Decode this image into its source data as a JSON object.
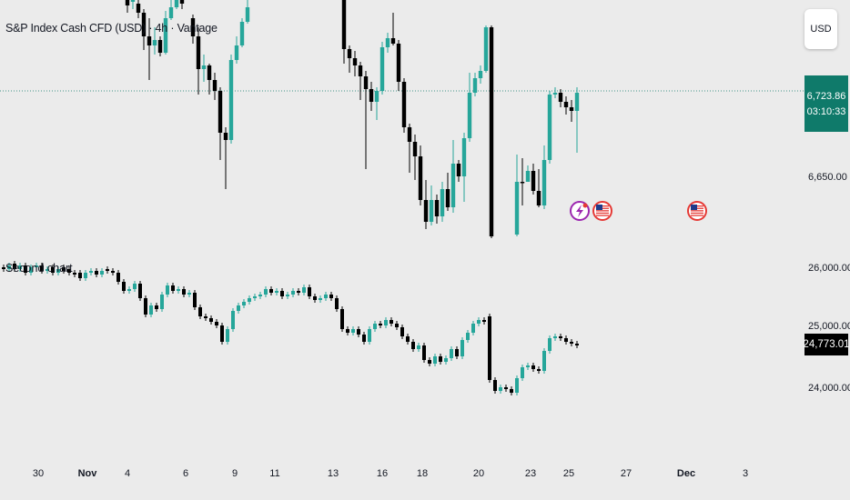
{
  "header": {
    "title": "S&P Index Cash CFD (USD) · 4h · Vantage"
  },
  "currency_button": {
    "label": "USD"
  },
  "current_price": {
    "value": "6,723.86",
    "countdown": "03:10:33"
  },
  "second_chart": {
    "label": "Second chart",
    "current_value": "24,773.01"
  },
  "colors": {
    "up": "#26a69a",
    "down": "#000000",
    "price_line": "#0f7a6a",
    "background": "#ebebeb"
  },
  "event_icons": [
    "lightning-icon",
    "us-flag-icon",
    "us-flag-icon"
  ],
  "chart_data": [
    {
      "type": "candlestick",
      "title": "S&P Index Cash CFD (USD) · 4h · Vantage",
      "y_ticks": [
        "6,723.86",
        "6,650.00"
      ],
      "last_value": 6723.86,
      "x_ticks": [
        "30",
        "Nov",
        "4",
        "6",
        "9",
        "11",
        "13",
        "16",
        "18",
        "20",
        "23",
        "25",
        "27",
        "Dec",
        "3"
      ]
    },
    {
      "type": "candlestick",
      "title": "Second chart",
      "y_ticks": [
        "26,000.00",
        "25,000.00",
        "24,000.00"
      ],
      "last_value": 24773.01
    }
  ]
}
